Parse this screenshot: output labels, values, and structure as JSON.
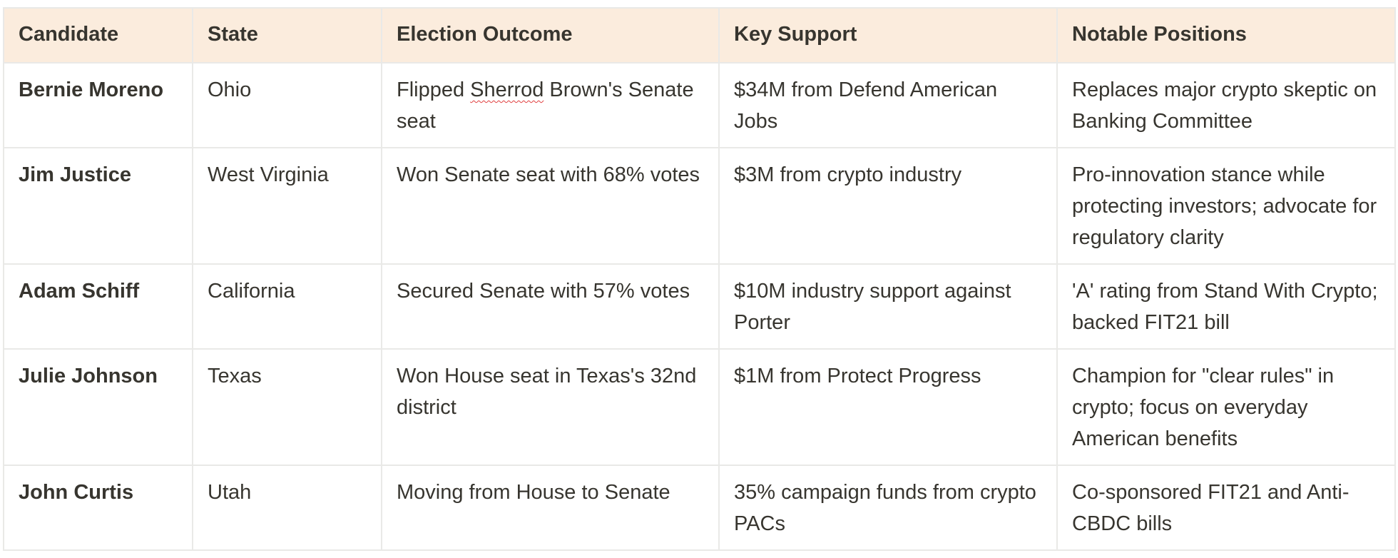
{
  "table": {
    "headers": [
      "Candidate",
      "State",
      "Election Outcome",
      "Key Support",
      "Notable Positions"
    ],
    "rows": [
      {
        "candidate": "Bernie Moreno",
        "state": "Ohio",
        "outcome_pre": "Flipped ",
        "outcome_flagged": "Sherrod",
        "outcome_post": " Brown's Senate seat",
        "support": "$34M from Defend American Jobs",
        "positions": "Replaces major crypto skeptic on Banking Committee"
      },
      {
        "candidate": "Jim Justice",
        "state": "West Virginia",
        "outcome": "Won Senate seat with 68% votes",
        "support": "$3M from crypto industry",
        "positions": "Pro-innovation stance while protecting investors; advocate for regulatory clarity"
      },
      {
        "candidate": "Adam Schiff",
        "state": "California",
        "outcome": "Secured Senate with 57% votes",
        "support": "$10M industry support against Porter",
        "positions": "'A' rating from Stand With Crypto; backed FIT21 bill"
      },
      {
        "candidate": "Julie Johnson",
        "state": "Texas",
        "outcome": "Won House seat in Texas's 32nd district",
        "support": "$1M from Protect Progress",
        "positions": "Champion for \"clear rules\" in crypto; focus on everyday American benefits"
      },
      {
        "candidate": "John Curtis",
        "state": "Utah",
        "outcome": "Moving from House to Senate",
        "support": "35% campaign funds from crypto PACs",
        "positions": "Co-sponsored FIT21 and Anti-CBDC bills"
      }
    ]
  },
  "colors": {
    "header_background": "#fbecdd",
    "border": "#e9e9e7",
    "text": "#37352f",
    "spellcheck_underline": "#e03e3e"
  }
}
